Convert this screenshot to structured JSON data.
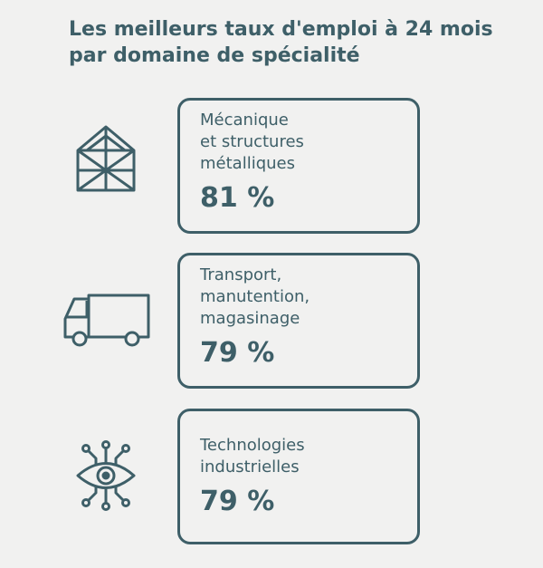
{
  "title": {
    "line1": "Les meilleurs taux d'emploi à 24 mois",
    "line2": "par domaine de spécialité"
  },
  "items": [
    {
      "icon": "greenhouse-structure-icon",
      "label_lines": [
        "Mécanique",
        "et structures",
        "métalliques"
      ],
      "value": "81 %"
    },
    {
      "icon": "truck-icon",
      "label_lines": [
        "Transport,",
        "manutention,",
        "magasinage"
      ],
      "value": "79 %"
    },
    {
      "icon": "eye-network-icon",
      "label_lines": [
        "Technologies",
        "industrielles"
      ],
      "value": "79 %"
    }
  ],
  "colors": {
    "accent": "#3e5f68",
    "background": "#f1f1f0"
  }
}
